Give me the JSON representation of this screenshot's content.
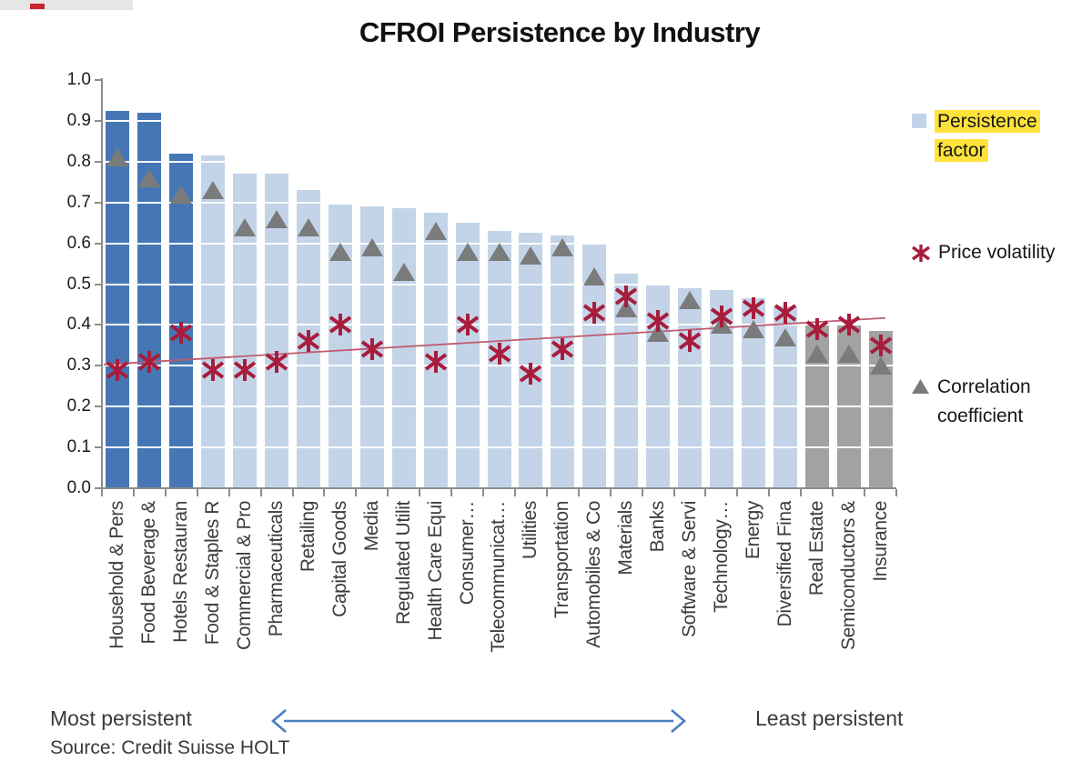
{
  "page": {
    "title": "CFROI Persistence by Industry",
    "most_persistent_label": "Most persistent",
    "least_persistent_label": "Least persistent",
    "source": "Source: Credit Suisse HOLT"
  },
  "legend": [
    {
      "label": "Persistence factor",
      "marker": "square-icon",
      "highlighted": true
    },
    {
      "label": "Price volatility",
      "marker": "asterisk-icon",
      "highlighted": false
    },
    {
      "label": "Correlation coefficient",
      "marker": "triangle-icon",
      "highlighted": false
    }
  ],
  "colors": {
    "dark_blue_bar": "#4677b4",
    "light_blue_bar": "#c3d4e8",
    "gray_bar": "#a2a2a2",
    "triangle": "#7b7b7b",
    "x_marker": "#a81c3c",
    "trend_line": "#c05a70",
    "gridline": "#b3b3b3",
    "axis": "#8c8c8c",
    "highlight_yellow": "#ffe33a",
    "arrow_blue": "#4a7ebd"
  },
  "chart_data": {
    "type": "bar",
    "title": "CFROI Persistence by Industry",
    "grid": true,
    "legend_position": "right",
    "ylim": [
      0.0,
      1.0
    ],
    "ytick_step": 0.1,
    "ytick_labels": [
      "0.0",
      "0.1",
      "0.2",
      "0.3",
      "0.4",
      "0.5",
      "0.6",
      "0.7",
      "0.8",
      "0.9",
      "1.0"
    ],
    "categories": [
      "Household & Pers",
      "Food Beverage &",
      "Hotels Restauran",
      "Food & Staples R",
      "Commercial & Pro",
      "Pharmaceuticals",
      "Retailing",
      "Capital Goods",
      "Media",
      "Regulated Utilit",
      "Health Care Equi",
      "Consumer…",
      "Telecommunicat…",
      "Utilities",
      "Transportation",
      "Automobiles & Co",
      "Materials",
      "Banks",
      "Software & Servi",
      "Technology…",
      "Energy",
      "Diversified Fina",
      "Real Estate",
      "Semiconductors &",
      "Insurance"
    ],
    "series": [
      {
        "name": "Persistence factor",
        "type": "bar",
        "values": [
          0.925,
          0.92,
          0.82,
          0.815,
          0.77,
          0.77,
          0.73,
          0.695,
          0.69,
          0.685,
          0.675,
          0.65,
          0.63,
          0.625,
          0.62,
          0.6,
          0.525,
          0.5,
          0.49,
          0.485,
          0.465,
          0.445,
          0.4,
          0.4,
          0.385
        ],
        "bar_styles": [
          "dark",
          "dark",
          "dark",
          "light",
          "light",
          "light",
          "light",
          "light",
          "light",
          "light",
          "light",
          "light",
          "light",
          "light",
          "light",
          "light",
          "light",
          "light",
          "light",
          "light",
          "light",
          "light",
          "gray",
          "gray",
          "gray"
        ]
      },
      {
        "name": "Price volatility",
        "type": "scatter",
        "marker": "asterisk",
        "values": [
          0.29,
          0.31,
          0.38,
          0.29,
          0.29,
          0.31,
          0.36,
          0.4,
          0.34,
          null,
          0.31,
          0.4,
          0.33,
          0.28,
          0.34,
          0.43,
          0.47,
          0.41,
          0.36,
          0.42,
          0.44,
          0.43,
          0.39,
          0.4,
          0.35
        ]
      },
      {
        "name": "Correlation coefficient",
        "type": "scatter",
        "marker": "triangle",
        "values": [
          0.81,
          0.76,
          0.72,
          0.73,
          0.64,
          0.66,
          0.64,
          0.58,
          0.59,
          0.53,
          0.63,
          0.58,
          0.58,
          0.57,
          0.59,
          0.52,
          0.44,
          0.38,
          0.46,
          0.4,
          0.39,
          0.37,
          0.33,
          0.33,
          0.3
        ]
      }
    ],
    "trendline": {
      "series": "Price volatility",
      "start_value": 0.303,
      "end_value": 0.417
    }
  }
}
